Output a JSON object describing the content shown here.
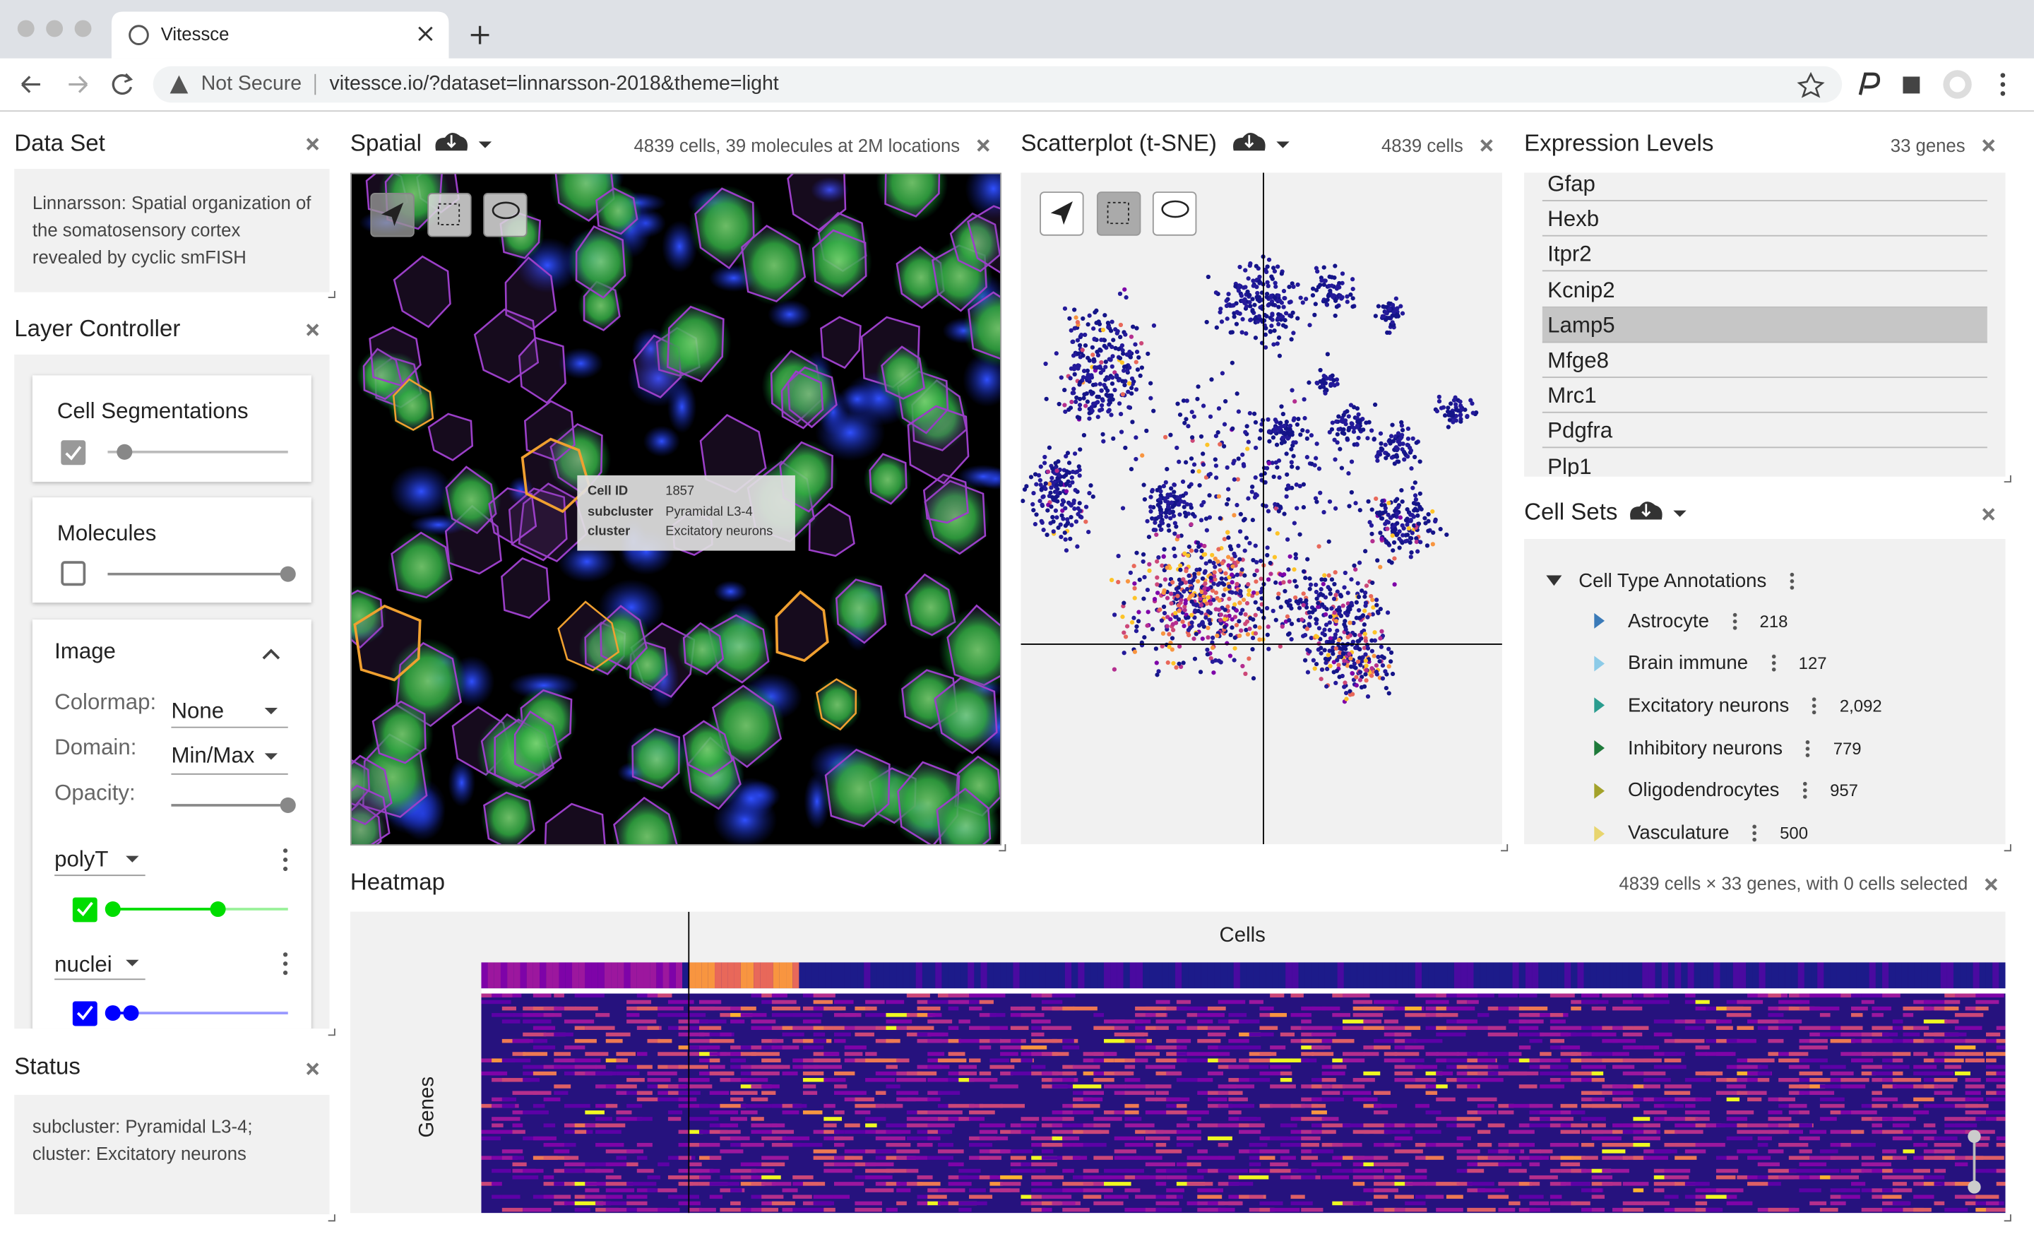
{
  "browser": {
    "tab_title": "Vitessce",
    "security": "Not Secure",
    "url": "vitessce.io/?dataset=linnarsson-2018&theme=light"
  },
  "data_set": {
    "title": "Data Set",
    "description": "Linnarsson: Spatial organization of the somatosensory cortex revealed by cyclic smFISH"
  },
  "layer_controller": {
    "title": "Layer Controller",
    "layers": [
      "Cell Segmentations",
      "Molecules"
    ],
    "image": {
      "title": "Image",
      "colormap_label": "Colormap:",
      "colormap": "None",
      "domain_label": "Domain:",
      "domain": "Min/Max",
      "opacity_label": "Opacity:",
      "channels": [
        {
          "name": "polyT",
          "color": "#00dd00"
        },
        {
          "name": "nuclei",
          "color": "#0000ff"
        }
      ]
    }
  },
  "status": {
    "title": "Status",
    "lines": [
      "subcluster: Pyramidal L3-4;",
      "cluster: Excitatory neurons"
    ]
  },
  "spatial": {
    "title": "Spatial",
    "info": "4839 cells, 39 molecules at 2M locations",
    "tooltip": [
      [
        "Cell ID",
        "1857"
      ],
      [
        "subcluster",
        "Pyramidal L3-4"
      ],
      [
        "cluster",
        "Excitatory neurons"
      ]
    ]
  },
  "scatterplot": {
    "title": "Scatterplot (t-SNE)",
    "info": "4839 cells"
  },
  "expression_levels": {
    "title": "Expression Levels",
    "info": "33 genes",
    "genes": [
      "Gfap",
      "Hexb",
      "Itpr2",
      "Kcnip2",
      "Lamp5",
      "Mfge8",
      "Mrc1",
      "Pdgfra",
      "Plp1"
    ],
    "selected": "Lamp5"
  },
  "cell_sets": {
    "title": "Cell Sets",
    "root": "Cell Type Annotations",
    "sets": [
      {
        "name": "Astrocyte",
        "count": "218",
        "color": "#3a7ab8"
      },
      {
        "name": "Brain immune",
        "count": "127",
        "color": "#8ccbe8"
      },
      {
        "name": "Excitatory neurons",
        "count": "2,092",
        "color": "#2a9d8f"
      },
      {
        "name": "Inhibitory neurons",
        "count": "779",
        "color": "#1e7a3a"
      },
      {
        "name": "Oligodendrocytes",
        "count": "957",
        "color": "#a3a22a"
      },
      {
        "name": "Vasculature",
        "count": "500",
        "color": "#e8d56e"
      }
    ]
  },
  "heatmap": {
    "title": "Heatmap",
    "info": "4839 cells × 33 genes, with 0 cells selected",
    "x_label": "Cells",
    "y_label": "Genes"
  }
}
